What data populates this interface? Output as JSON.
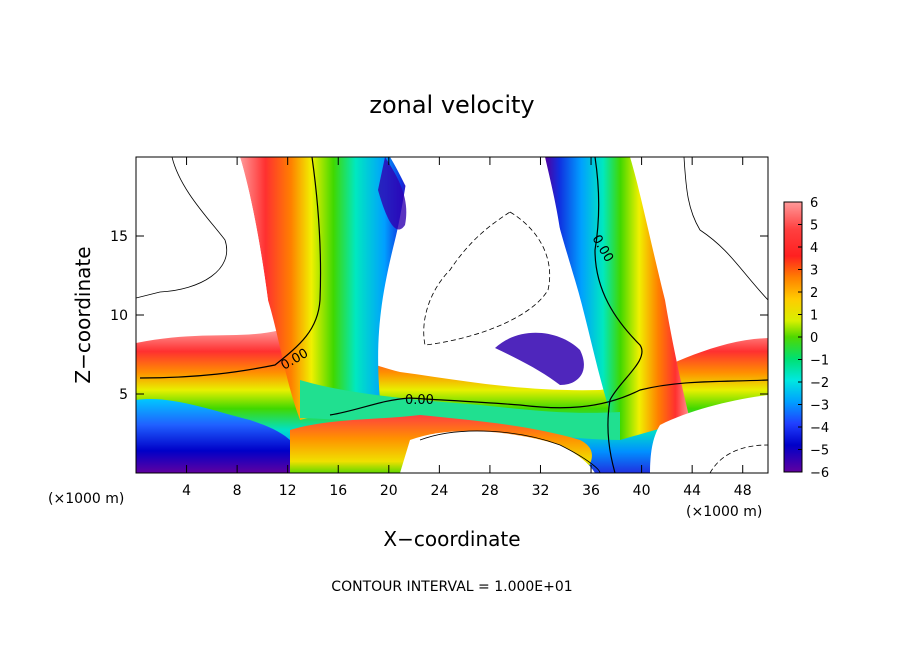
{
  "chart_data": {
    "type": "heatmap",
    "title": "zonal velocity",
    "xlabel": "X−coordinate",
    "ylabel": "Z−coordinate",
    "x_unit": "(×1000 m)",
    "x_unit_right": "(×1000 m)",
    "footer": "CONTOUR INTERVAL = 1.000E+01",
    "xlim": [
      0,
      50
    ],
    "ylim": [
      0,
      20
    ],
    "xticks": [
      4,
      8,
      12,
      16,
      20,
      24,
      28,
      32,
      36,
      40,
      44,
      48
    ],
    "yticks": [
      5,
      10,
      15
    ],
    "zero_contour_labels": [
      "0.00",
      "0.00",
      "0.00"
    ],
    "colorbar": {
      "min": -6,
      "max": 6,
      "ticks": [
        6,
        5,
        4,
        3,
        2,
        1,
        0,
        -1,
        -2,
        -3,
        -4,
        -5,
        -6
      ],
      "tick_labels": [
        "6",
        "5",
        "4",
        "3",
        "2",
        "1",
        "0",
        "−1",
        "−2",
        "−3",
        "−4",
        "−5",
        "−6"
      ],
      "colors": [
        "#ff9a9a",
        "#ff5050",
        "#ff2020",
        "#ff7a00",
        "#ffc000",
        "#f0f000",
        "#a8e800",
        "#30d800",
        "#00e080",
        "#00e8d8",
        "#00b0ff",
        "#2050ff",
        "#0000d0",
        "#6000a8"
      ]
    },
    "grid": false
  }
}
